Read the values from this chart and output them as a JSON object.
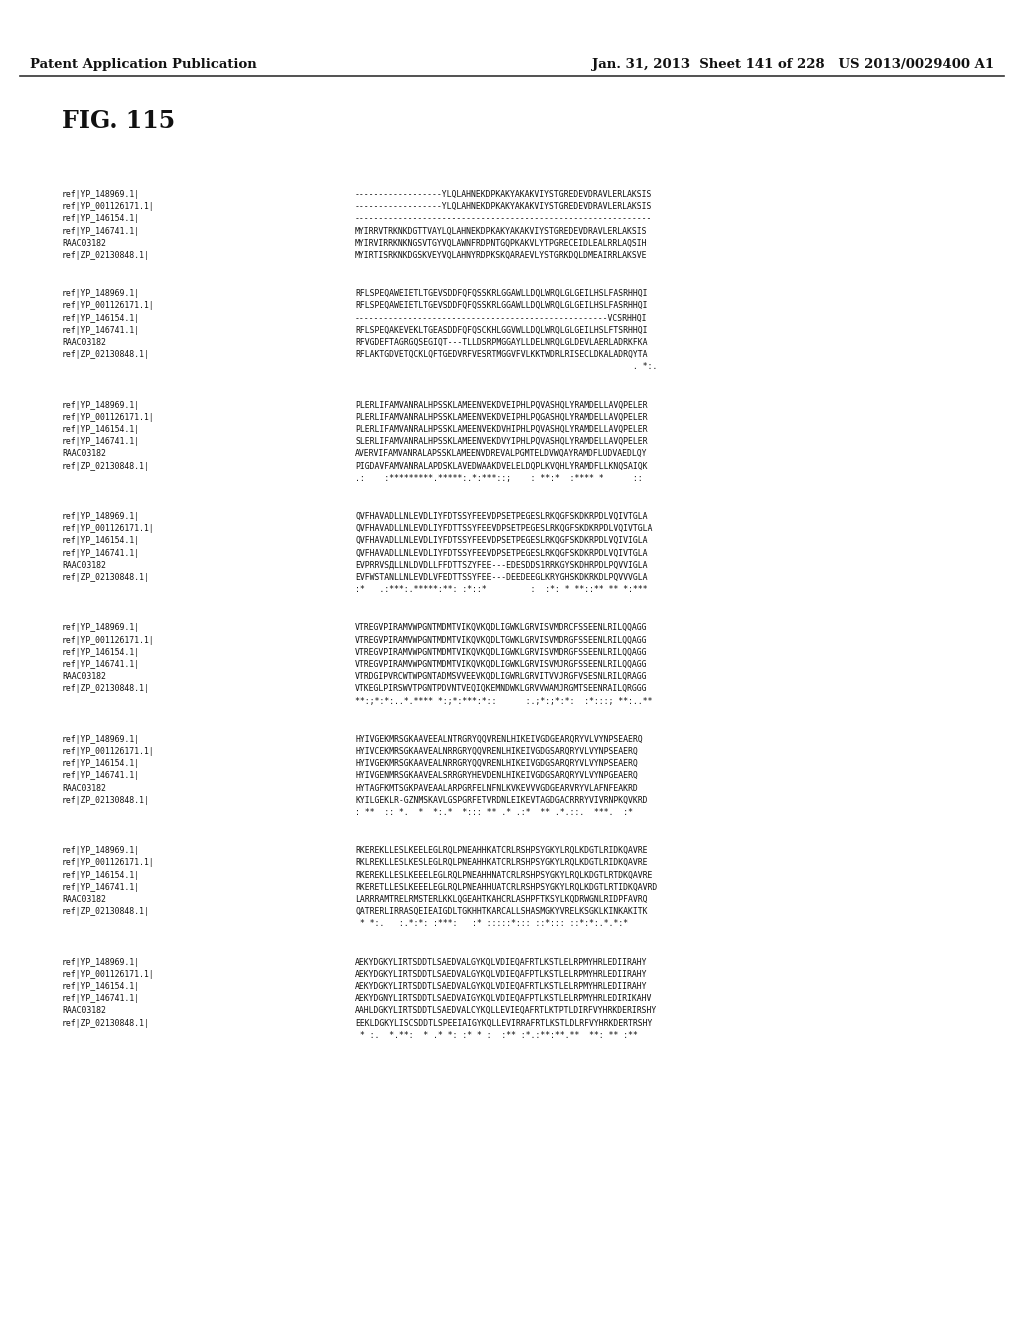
{
  "header_left": "Patent Application Publication",
  "header_right": "Jan. 31, 2013  Sheet 141 of 228   US 2013/0029400 A1",
  "fig_label": "FIG. 115",
  "background_color": "#ffffff",
  "text_color": "#1a1a1a",
  "blocks": [
    {
      "labels": [
        "ref|YP_148969.1|",
        "ref|YP_001126171.1|",
        "ref|YP_146154.1|",
        "ref|YP_146741.1|",
        "RAAC03182",
        "ref|ZP_02130848.1|"
      ],
      "seqs": [
        "------------------YLQLAHNEKDPKAKYAKAKVIYSTGREDEVDRAVLERLAKSIS",
        "------------------YLQLAHNEKDPKAKYAKAKVIYSTGREDEVDRAVLERLAKSIS",
        "-------------------------------------------------------------",
        "MYIRRVTRKNKDGTTVAYLQLAHNEKDPKAKYAKAKVIYSTGREDEVDRAVLERLAKSIS",
        "MYIRVIRRKNKNGSVTGYVQLAWNFRDPNTGQPKAKVLYTPGRECEIDLEALRRLAQSIH",
        "MYIRTISRKNKDGSKVEYVQLAHNYRDPKSKQARAEVLYSTGRKDQLDMEAIRRLAKSVE"
      ],
      "consensus": ""
    },
    {
      "labels": [
        "ref|YP_148969.1|",
        "ref|YP_001126171.1|",
        "ref|YP_146154.1|",
        "ref|YP_146741.1|",
        "RAAC03182",
        "ref|ZP_02130848.1|"
      ],
      "seqs": [
        "RFLSPEQAWEIETLTGEVSDDFQFQSSKRLGGAWLLDQLWRQLGLGEILHSLFASRHHQI",
        "RFLSPEQAWEIETLTGEVSDDFQFQSSKRLGGAWLLDQLWRQLGLGEILHSLFASRHHQI",
        "----------------------------------------------------VCSRHHQI",
        "RFLSPEQAKEVEKLTGEASDDFQFQSCKHLGGVWLLDQLWRQLGLGEILHSLFTSRHHQI",
        "RFVGDEFTAGRGQSEGIQT---TLLDSRPMGGAYLLDELNRQLGLDEVLAERLADRKFKA",
        "RFLAKTGDVETQCKLQFTGEDVRFVESRTMGGVFVLKKTWDRLRISECLDKALADRQYTA"
      ],
      "consensus": "                                                         . *:."
    },
    {
      "labels": [
        "ref|YP_148969.1|",
        "ref|YP_001126171.1|",
        "ref|YP_146154.1|",
        "ref|YP_146741.1|",
        "RAAC03182",
        "ref|ZP_02130848.1|"
      ],
      "seqs": [
        "PLERLIFAMVANRALHPSSKLAMEENVEKDVEIPHLPQVASHQLYRAMDELLAVQPELER",
        "PLERLIFAMVANRALHPSSKLAMEENVEKDVEIPHLPQGASHQLYRAMDELLAVQPELER",
        "PLERLIFAMVANRALHPSSKLAMEENVEKDVHIPHLPQVASHQLYRAMDELLAVQPELER",
        "SLERLIFAMVANRALHPSSKLAMEENVEKDVYIPHLPQVASHQLYRAMDELLAVQPELER",
        "AVERVIFAMVANRALAPSSKLAMEENVDREVALPGMTELDVWQAYRAMDFLUDVAEDLQY",
        "PIGDAVFAMVANRALAPDSKLAVEDWAAKDVELELDQPLKVQHLYRAMDFLLKNQSAIQK"
      ],
      "consensus": ".:    :*********.*****:.*:***::;    : **:*  :**** *      ::"
    },
    {
      "labels": [
        "ref|YP_148969.1|",
        "ref|YP_001126171.1|",
        "ref|YP_146154.1|",
        "ref|YP_146741.1|",
        "RAAC03182",
        "ref|ZP_02130848.1|"
      ],
      "seqs": [
        "QVFHAVADLLNLEVDLIYFDTSSYFEEVDPSETPEGESLRKQGFSKDKRPDLVQIVTGLA",
        "QVFHAVADLLNLEVDLIYFDTTSSYFEEVDPSETPEGESLRKQGFSKDKRPDLVQIVTGLA",
        "QVFHAVADLLNLEVDLIYFDTSSYFEEVDPSETPEGESLRKQGFSKDKRPDLVQIVIGLA",
        "QVFHAVADLLNLEVDLIYFDTSSYFEEVDPSETPEGESLRKQGFSKDKRPDLVQIVTGLA",
        "EVPRRVSДLLNLDVDLLFFDTTSZYFEE---EDESDDS1RRKGYSKDHRPDLPQVVIGLA",
        "EVFWSTANLLNLEVDLVFEDTTSSYFEE---DEEDEEGLKRYGHSKDKRKDLPQVVVGLA"
      ],
      "consensus": ":*   .:***:.*****:**: :*::*         :  :*: * **::** ** *:***"
    },
    {
      "labels": [
        "ref|YP_148969.1|",
        "ref|YP_001126171.1|",
        "ref|YP_146154.1|",
        "ref|YP_146741.1|",
        "RAAC03182",
        "ref|ZP_02130848.1|"
      ],
      "seqs": [
        "VTREGVPIRAMVWPGNTMDMTVIKQVKQDLIGWKLGRVISVMDRCFSSEENLRILQQAGG",
        "VTREGVPIRAMVWPGNTMDMTVIKQVKQDLTGWKLGRVISVMDRGFSSEENLRILQQAGG",
        "VTREGVPIRAMVWPGNTMDMTVIKQVKQDLIGWKLGRVISVMDRGFSSEENLRILQQAGG",
        "VTREGVPIRAMVWPGNTMDMTVIKQVKQDLIGWKLGRVISVMJRGFSSEENLRILQQAGG",
        "VTRDGIPVRCWTWPGNTADMSVVEEVKQDLIGWRLGRVITVVJRGFVSESNLRILQRAGG",
        "VTKEGLPIRSWVTPGNTPDVNTVEQIQKEMNDWKLGRVVWAMJRGMTSEENRAILQRGGG"
      ],
      "consensus": "**:;*:*:..*.**** *:;*:***:*::      :.;*:;*:*:  :*:::; **:..**"
    },
    {
      "labels": [
        "ref|YP_148969.1|",
        "ref|YP_001126171.1|",
        "ref|YP_146154.1|",
        "ref|YP_146741.1|",
        "RAAC03182",
        "ref|ZP_02130848.1|"
      ],
      "seqs": [
        "HYIVGEKMRSGKAAVEEALNTRGRYQQVRENLHIKEIVGDGEARQRYVLVYNPSEAERQ",
        "HYIVCEKMRSGKAAVEALNRRGRYQQVRENLHIKEIVGDGSARQRYVLVYNPSEAERQ",
        "HYIVGEKMRSGKAAVEALNRRGRYQQVRENLHIKEIVGDGSARQRYVLVYNPSEAERQ",
        "HYIVGENMRSGKAAVEALSRRGRYHEVDENLHIKEIVGDGSARQRYVLVYNPGEAERQ",
        "HYTAGFKMTSGKPAVEAALARPGRFELNFNLKVKEVVVGDGEARVRYVLAFNFEAKRD",
        "KYILGEKLR-GZNMSKAVLGSPGRFETVRDNLEIKEVTAGDGACRRRYVIVRNPKQVKRD"
      ],
      "consensus": ": **  :: *.  *  *:.*  *::: ** .* .:*  ** .*.::.  ***.  :*"
    },
    {
      "labels": [
        "ref|YP_148969.1|",
        "ref|YP_001126171.1|",
        "ref|YP_146154.1|",
        "ref|YP_146741.1|",
        "RAAC03182",
        "ref|ZP_02130848.1|"
      ],
      "seqs": [
        "RKEREKLLESLKEELEGLRQLPNEAHHKATCRLRSHPSYGKYLRQLKDGTLRIDKQAVRE",
        "RKLREКLLESLKESLEGLRQLPNEAHHKATCRLRSHPSYGKYLRQLKDGTLRIDKQAVRE",
        "RKEREKLLESLKEЕELEGLRQLPNEAHHNATCRLRSHPSYGKYLRQLKDGTLRTDKQAVRE",
        "RKERETLLESLKEЕЕLEGLRQLPNEAHHUATCRLRSHPSYGKYLRQLKDGTLRTIDKQAVRD",
        "LARRRAMTRELRMSTERLKKLQGEAHTKAHCRLASHPFTKSYLKQDRWGNLRIDPFAVRQ",
        "QATRERLIRRASQEIEAIGDLTGKHHTKARCALLSHASMGKYVRELKSGKLKINKAKITK"
      ],
      "consensus": " * *:.   :.*:*: :***:   :* :::::*::: ::*::: ::*:*:.*.*:*"
    },
    {
      "labels": [
        "ref|YP_148969.1|",
        "ref|YP_001126171.1|",
        "ref|YP_146154.1|",
        "ref|YP_146741.1|",
        "RAAC03182",
        "ref|ZP_02130848.1|"
      ],
      "seqs": [
        "AEKYDGKYLIRTSDDTLSAEDVALGYKQLVDIEQAFRTLKSTLELRPMYHRLEDIIRAHY",
        "AEKYDGKYLIRTSDDTLSAEDVALGYKQLVDIEQAFPTLKSTLELRPMYHRLEDIIRAHY",
        "AEKYDGKYLIRTSDDTLSAEDVALGYKQLVDIEQAFRTLKSTLELRPMYHRLEDIIRAHY",
        "AEKYDGNYLIRTSDDTLSAEDVAIGYKQLVDIEQAFPTLKSTLELRPMYHRLEDIRIKAHV",
        "AAHLDGKYLIRTSDDTLSAEDVALCYKQLLEVIEQAFRTLKTPTLDIRFVYHRKDERIRSHY",
        "EEKLDGKYLISCSDDTLSPEEIAIGYKQLLEVIRRAFRTLKSTLDLRFVYHRKDERTRSHY"
      ],
      "consensus": " * :.  *.**:  * .* *: :* * :  :** :*.:**:**.**  **: ** :**"
    }
  ]
}
